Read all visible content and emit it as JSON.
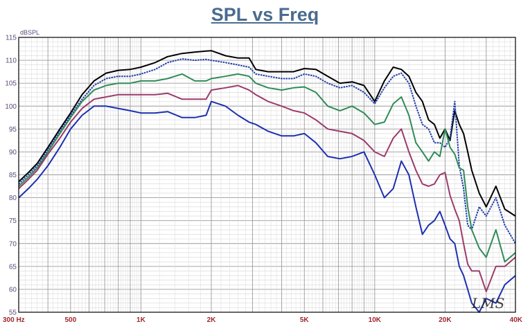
{
  "chart_data": {
    "type": "line",
    "title": "SPL vs Freq",
    "ylabel": "dBSPL",
    "xscale": "log",
    "xlim": [
      300,
      40000
    ],
    "ylim": [
      55,
      115
    ],
    "grid": true,
    "y_ticks": [
      "115",
      "110",
      "105",
      "100",
      "95",
      "90",
      "85",
      "80",
      "75",
      "70",
      "65",
      "60",
      "55"
    ],
    "x_ticks": [
      {
        "label": "300  Hz",
        "value": 300
      },
      {
        "label": "500",
        "value": 500
      },
      {
        "label": "1K",
        "value": 1000
      },
      {
        "label": "2K",
        "value": 2000
      },
      {
        "label": "5K",
        "value": 5000
      },
      {
        "label": "10K",
        "value": 10000
      },
      {
        "label": "20K",
        "value": 20000
      },
      {
        "label": "40K",
        "value": 40000
      }
    ],
    "watermark": "LMS",
    "series": [
      {
        "color": "#000000",
        "dashed": false,
        "x": [
          300,
          330,
          360,
          400,
          450,
          500,
          560,
          630,
          710,
          800,
          900,
          1000,
          1150,
          1300,
          1500,
          1700,
          1900,
          2000,
          2300,
          2600,
          2900,
          3100,
          3500,
          4000,
          4500,
          5000,
          5600,
          6300,
          7100,
          8000,
          9000,
          10000,
          11000,
          12000,
          13000,
          14000,
          15000,
          16000,
          17000,
          18000,
          19000,
          20000,
          21000,
          22000,
          23000,
          24000,
          25000,
          26000,
          28000,
          30000,
          33000,
          36000,
          40000
        ],
        "y": [
          83.5,
          85.5,
          87.5,
          91,
          95,
          98.5,
          102.5,
          105.5,
          107.2,
          107.8,
          108,
          108.5,
          109.5,
          110.8,
          111.5,
          111.8,
          112,
          112.1,
          111,
          110.5,
          110.5,
          108,
          107.5,
          107.5,
          107.5,
          108.2,
          108,
          106.5,
          105,
          105.3,
          104.5,
          101,
          105.5,
          108.5,
          108,
          106.5,
          103,
          101,
          97,
          96,
          93,
          95,
          92.5,
          99,
          96,
          94,
          90,
          86,
          81,
          78,
          82.5,
          77.5,
          76
        ]
      },
      {
        "color": "#1f3fa8",
        "dashed": true,
        "x": [
          300,
          330,
          360,
          400,
          450,
          500,
          560,
          630,
          710,
          800,
          900,
          1000,
          1150,
          1300,
          1500,
          1700,
          1900,
          2000,
          2300,
          2600,
          2900,
          3100,
          3500,
          4000,
          4500,
          5000,
          5600,
          6300,
          7100,
          8000,
          9000,
          10000,
          11000,
          12000,
          13000,
          14000,
          15000,
          16000,
          17000,
          18000,
          19000,
          20000,
          21000,
          22000,
          23000,
          24000,
          25000,
          26000,
          28000,
          30000,
          33000,
          36000,
          40000
        ],
        "y": [
          83,
          85,
          87,
          90.5,
          94.5,
          98,
          101.5,
          104.5,
          106,
          106.5,
          106.5,
          107,
          108,
          109.5,
          110.3,
          110,
          110.2,
          110,
          109.5,
          109,
          108.5,
          107,
          106.5,
          106,
          106,
          107,
          106.5,
          105,
          104,
          104.5,
          103,
          100.5,
          104,
          106.5,
          107.2,
          105,
          100,
          96,
          95,
          92,
          92,
          91,
          93,
          101,
          87,
          82,
          74,
          73,
          78,
          76,
          80,
          74,
          70
        ]
      },
      {
        "color": "#2e8b57",
        "dashed": false,
        "x": [
          300,
          330,
          360,
          400,
          450,
          500,
          560,
          630,
          710,
          800,
          900,
          1000,
          1150,
          1300,
          1500,
          1700,
          1900,
          2000,
          2300,
          2600,
          2900,
          3100,
          3500,
          4000,
          4500,
          5000,
          5600,
          6300,
          7100,
          8000,
          9000,
          10000,
          11000,
          12000,
          13000,
          14000,
          15000,
          16000,
          17000,
          18000,
          19000,
          20000,
          21000,
          22000,
          23000,
          24000,
          25000,
          26000,
          28000,
          30000,
          33000,
          36000,
          40000
        ],
        "y": [
          82.5,
          84.5,
          86.5,
          90,
          94,
          97.5,
          101,
          103.5,
          104.5,
          105,
          105,
          105.5,
          105.5,
          106,
          107,
          105.5,
          105.5,
          106,
          106.5,
          107,
          106.5,
          105,
          104,
          103.5,
          104,
          104.2,
          103,
          100,
          99,
          100,
          98.5,
          96,
          96.5,
          100.5,
          102,
          98,
          92,
          90,
          88,
          90,
          89,
          95,
          91,
          89.5,
          86.5,
          86,
          78,
          73,
          69,
          67,
          73,
          66,
          68
        ]
      },
      {
        "color": "#9b3a6a",
        "dashed": false,
        "x": [
          300,
          330,
          360,
          400,
          450,
          500,
          560,
          630,
          710,
          800,
          900,
          1000,
          1150,
          1300,
          1500,
          1700,
          1900,
          2000,
          2300,
          2600,
          2900,
          3100,
          3500,
          4000,
          4500,
          5000,
          5600,
          6300,
          7100,
          8000,
          9000,
          10000,
          11000,
          12000,
          13000,
          14000,
          15000,
          16000,
          17000,
          18000,
          19000,
          20000,
          21000,
          22000,
          23000,
          24000,
          25000,
          26000,
          28000,
          30000,
          33000,
          36000,
          40000
        ],
        "y": [
          82,
          84,
          86,
          89.5,
          93,
          96.5,
          99.5,
          101.5,
          102,
          102.5,
          102.5,
          102.5,
          102.5,
          102.8,
          101.5,
          101.5,
          101.5,
          103.5,
          104,
          104.5,
          103.5,
          102.5,
          101,
          100,
          99,
          98.5,
          97,
          95,
          94.5,
          94,
          92.5,
          90,
          89,
          93,
          95,
          90,
          86,
          83,
          82.5,
          83,
          85,
          85.5,
          80.5,
          77.5,
          75,
          70,
          65.5,
          64,
          64,
          59.5,
          65,
          65,
          67
        ]
      },
      {
        "color": "#1c2fb0",
        "dashed": false,
        "x": [
          300,
          330,
          360,
          400,
          450,
          500,
          560,
          630,
          710,
          800,
          900,
          1000,
          1150,
          1300,
          1500,
          1700,
          1900,
          2000,
          2300,
          2600,
          2900,
          3100,
          3500,
          4000,
          4500,
          5000,
          5600,
          6300,
          7100,
          8000,
          9000,
          10000,
          11000,
          12000,
          13000,
          14000,
          15000,
          16000,
          17000,
          18000,
          19000,
          20000,
          21000,
          22000,
          23000,
          24000,
          25000,
          26000,
          28000,
          30000,
          33000,
          36000,
          40000
        ],
        "y": [
          80,
          82,
          84,
          87,
          91,
          95,
          98,
          100,
          100,
          99.5,
          99,
          98.5,
          98.5,
          98.8,
          97.5,
          97.5,
          98,
          101,
          100,
          98,
          96.5,
          96,
          94.5,
          93.5,
          93.5,
          94,
          92,
          89,
          88.5,
          89,
          90,
          85,
          80,
          82,
          88,
          85,
          78,
          72,
          74,
          75,
          77,
          74,
          71,
          70,
          65,
          63,
          60,
          57,
          55,
          58,
          57,
          61,
          63
        ]
      }
    ]
  }
}
